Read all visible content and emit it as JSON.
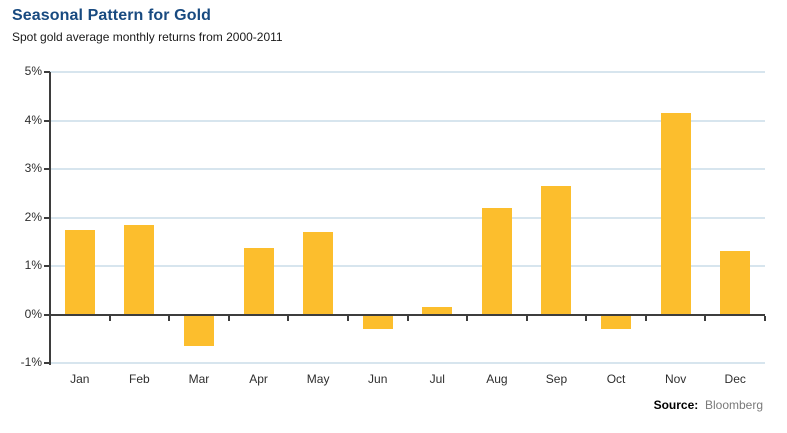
{
  "header": {
    "title": "Seasonal Pattern for Gold",
    "subtitle": "Spot gold average monthly returns from 2000-2011"
  },
  "chart_data": {
    "type": "bar",
    "title": "Seasonal Pattern for Gold",
    "subtitle": "Spot gold average monthly returns from 2000-2011",
    "categories": [
      "Jan",
      "Feb",
      "Mar",
      "Apr",
      "May",
      "Jun",
      "Jul",
      "Aug",
      "Sep",
      "Oct",
      "Nov",
      "Dec"
    ],
    "values": [
      1.75,
      1.85,
      -0.65,
      1.38,
      1.7,
      -0.3,
      0.15,
      2.2,
      2.65,
      -0.3,
      4.15,
      1.3
    ],
    "xlabel": "",
    "ylabel": "",
    "ylim": [
      -1,
      5
    ],
    "y_ticks": [
      5,
      4,
      3,
      2,
      1,
      0,
      -1
    ],
    "y_tick_labels": [
      "5%",
      "4%",
      "3%",
      "2%",
      "1%",
      "0%",
      "-1%"
    ],
    "grid": "horizontal gridlines at each 1%",
    "legend": "none"
  },
  "footer": {
    "source_label": "Source:",
    "source_value": "Bloomberg"
  },
  "colors": {
    "title": "#184A80",
    "bar": "#FCBE2D",
    "gridline": "#D7E5EE",
    "axis": "#3d3d3d",
    "tick_text": "#2e2e2e"
  }
}
